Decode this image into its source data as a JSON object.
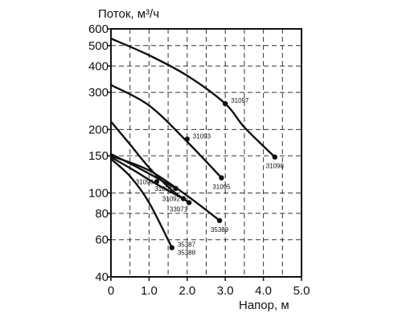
{
  "chart_data": {
    "type": "line",
    "ylabel": "Поток, м³/ч",
    "xlabel": "Напор, м",
    "xlim": [
      0,
      5
    ],
    "ylim": [
      40,
      600
    ],
    "y_scale": "log",
    "x_ticks": [
      "0",
      "1.0",
      "2.0",
      "3.0",
      "4.0",
      "5.0"
    ],
    "y_ticks": [
      {
        "value": 40,
        "label": "40"
      },
      {
        "value": 60,
        "label": "60"
      },
      {
        "value": 80,
        "label": "80"
      },
      {
        "value": 100,
        "label": "100"
      },
      {
        "value": 150,
        "label": "150"
      },
      {
        "value": 200,
        "label": "200"
      },
      {
        "value": 300,
        "label": "300"
      },
      {
        "value": 400,
        "label": "400"
      },
      {
        "value": 500,
        "label": "500"
      },
      {
        "value": 600,
        "label": "600"
      }
    ],
    "grid": true,
    "series": [
      {
        "x": [
          0,
          1,
          2,
          3,
          3.5,
          4.3
        ],
        "y": [
          540,
          450,
          360,
          265,
          205,
          148
        ]
      },
      {
        "x": [
          0,
          1,
          2,
          2.9
        ],
        "y": [
          325,
          260,
          175,
          118
        ]
      },
      {
        "x": [
          0,
          0.5,
          1,
          1.6,
          2.05
        ],
        "y": [
          218,
          170,
          132,
          103,
          90
        ]
      },
      {
        "x": [
          0,
          0.6,
          1.2,
          1.7
        ],
        "y": [
          153,
          135,
          118,
          105
        ]
      },
      {
        "x": [
          0,
          0.6,
          1.2,
          1.9
        ],
        "y": [
          148,
          128,
          110,
          94
        ]
      },
      {
        "x": [
          0,
          1,
          2,
          2.85
        ],
        "y": [
          150,
          128,
          97,
          74
        ]
      },
      {
        "x": [
          0,
          0.5,
          1,
          1.6
        ],
        "y": [
          145,
          120,
          90,
          55
        ]
      }
    ],
    "points": [
      {
        "label": "31097",
        "x": 3.0,
        "y": 265,
        "label_pos": "right"
      },
      {
        "label": "31098",
        "x": 4.3,
        "y": 148,
        "label_pos": "below"
      },
      {
        "label": "31093",
        "x": 2.0,
        "y": 180,
        "label_pos": "right"
      },
      {
        "label": "31095",
        "x": 2.9,
        "y": 118,
        "label_pos": "below"
      },
      {
        "label": "31090",
        "x": 1.2,
        "y": 113,
        "label_pos": "left"
      },
      {
        "label": "31091",
        "x": 1.7,
        "y": 105,
        "label_pos": "left"
      },
      {
        "label": "31092",
        "x": 1.9,
        "y": 94,
        "label_pos": "left"
      },
      {
        "label": "33971",
        "x": 2.05,
        "y": 90,
        "label_pos": "below-left"
      },
      {
        "label": "35389",
        "x": 2.85,
        "y": 74,
        "label_pos": "below"
      },
      {
        "label": "35387",
        "x": 1.6,
        "y": 55,
        "label_pos": "right"
      },
      {
        "label": "35388",
        "x": 1.6,
        "y": 55,
        "label_pos": "right-below"
      }
    ]
  },
  "colors": {
    "curve": "#111111",
    "grid": "#333333",
    "axis": "#111111"
  }
}
